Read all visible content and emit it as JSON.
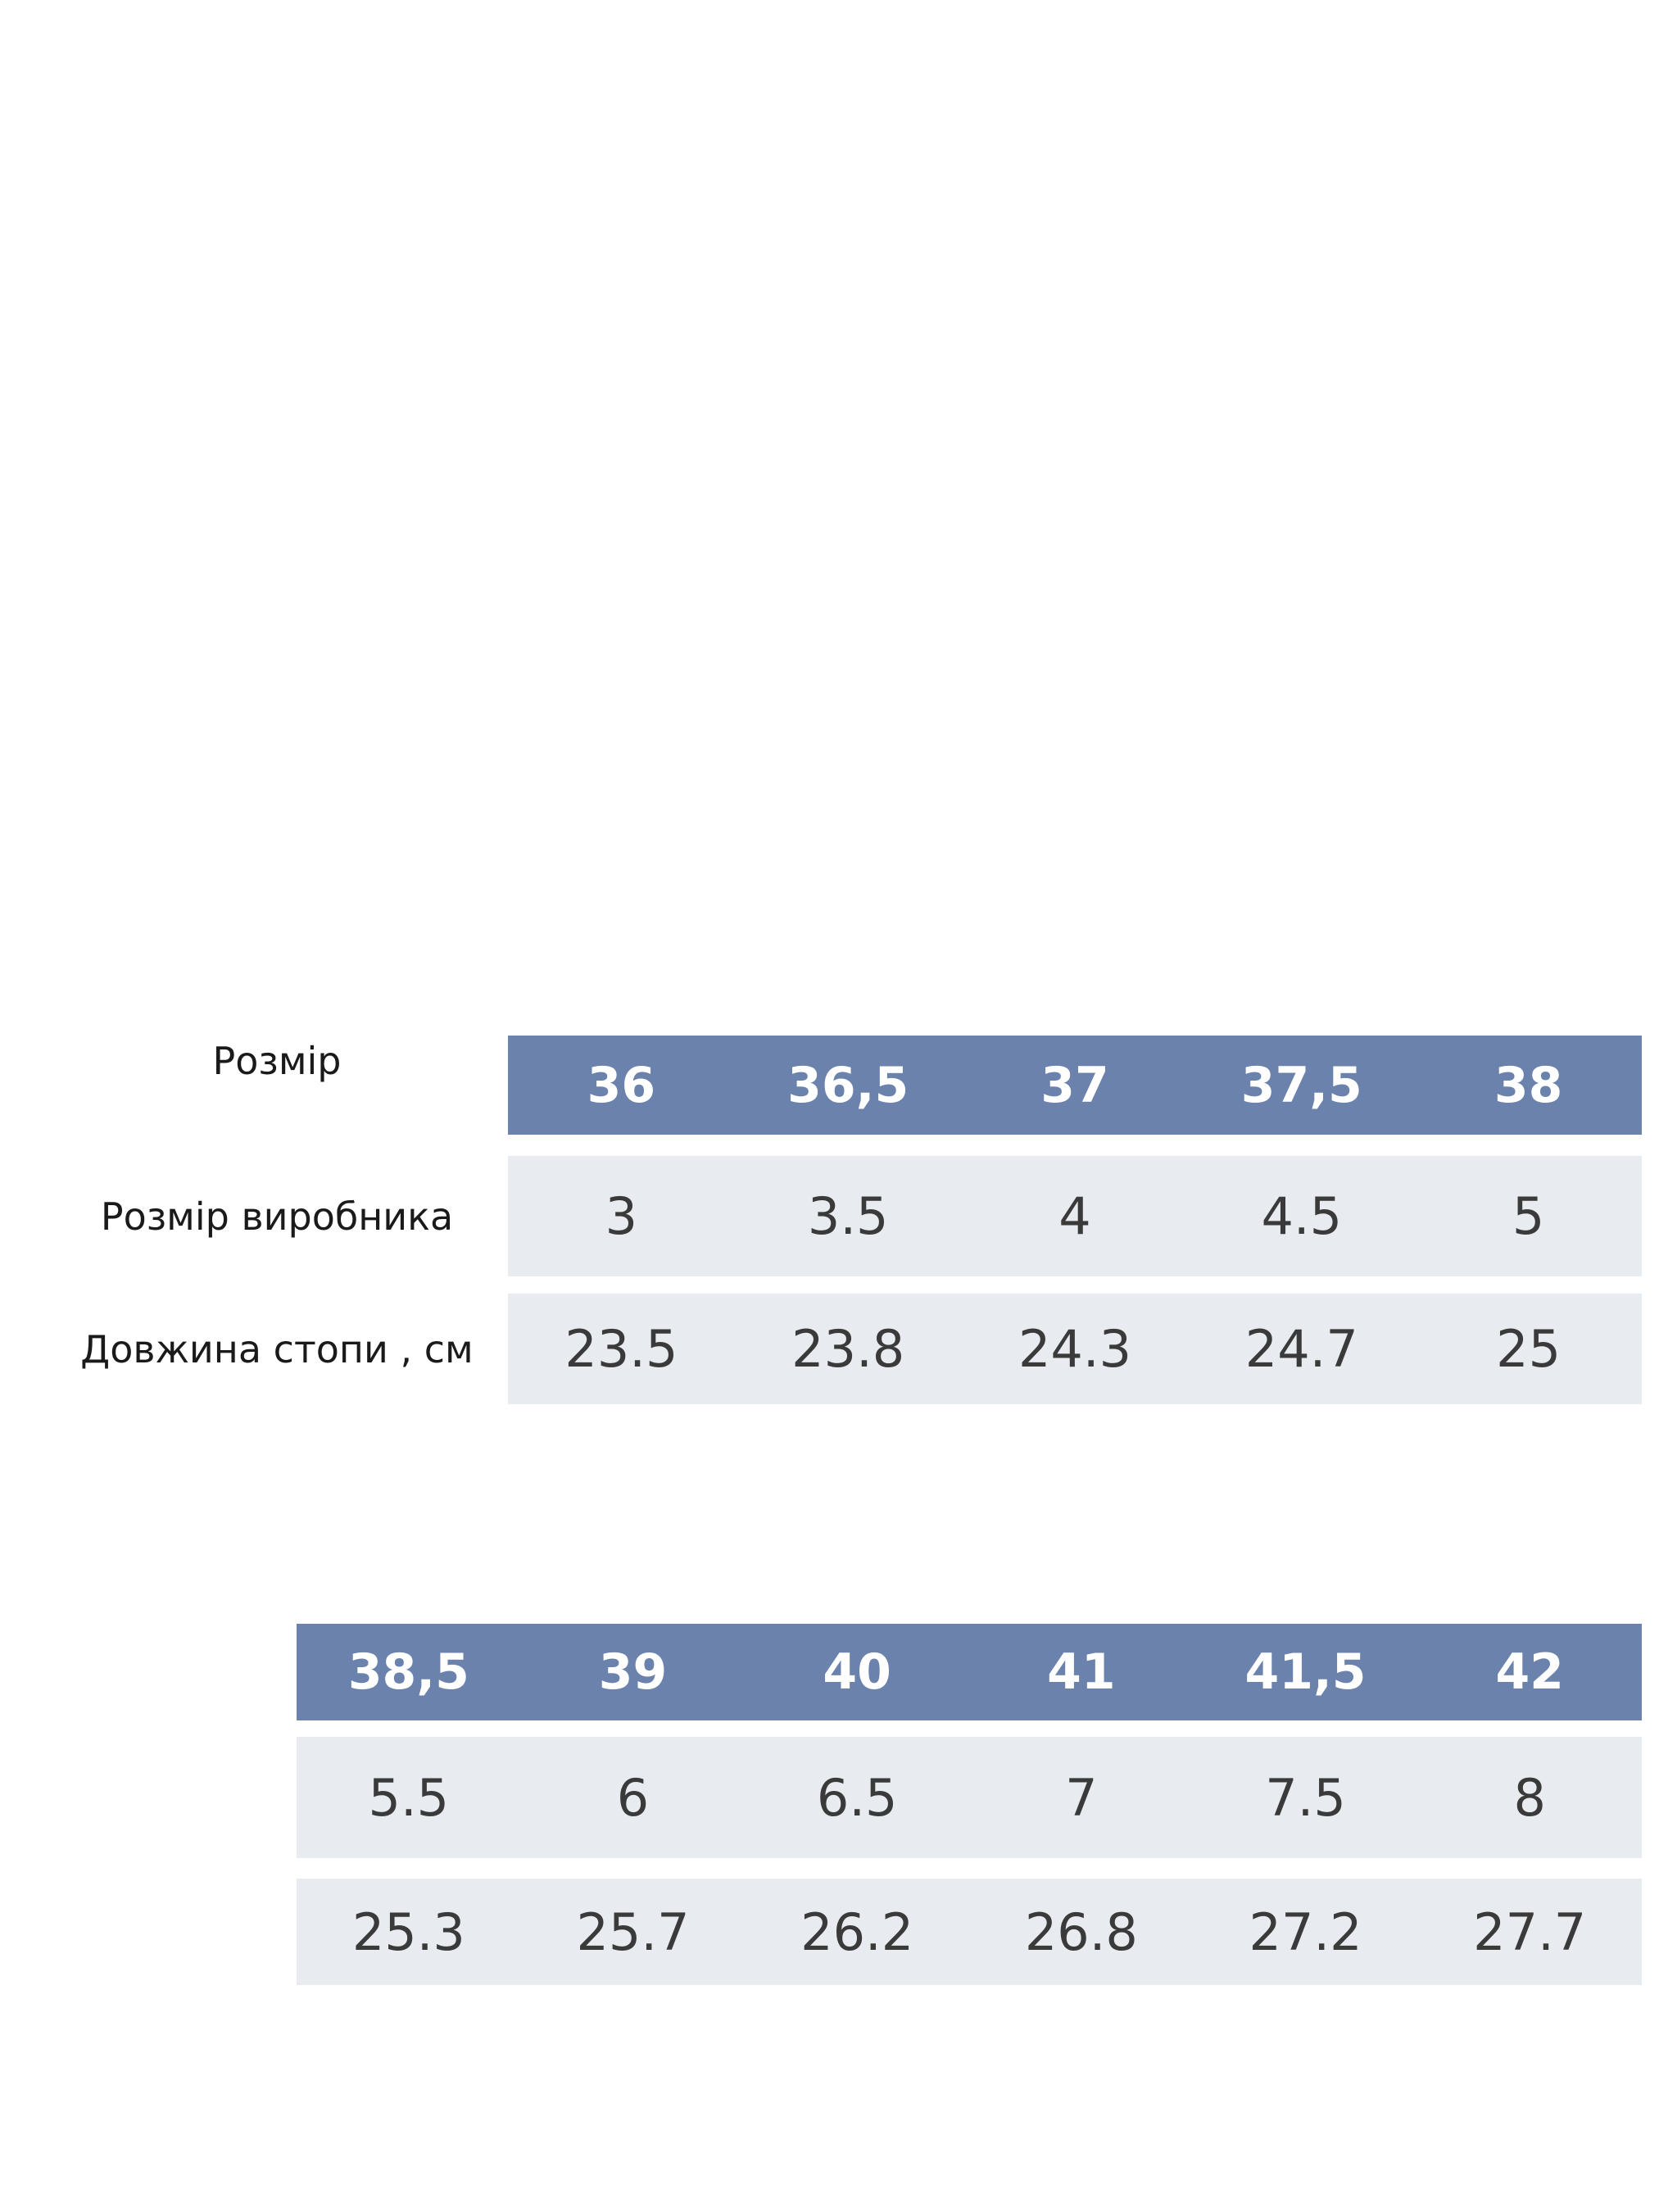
{
  "tables": [
    {
      "row_labels": [
        "Розмір",
        "Розмір виробника",
        "Довжина стопи , см"
      ],
      "rows": [
        [
          "36",
          "36,5",
          "37",
          "37,5",
          "38"
        ],
        [
          3,
          3.5,
          4,
          4.5,
          5
        ],
        [
          23.5,
          23.8,
          24.3,
          24.7,
          25
        ]
      ]
    },
    {
      "rows": [
        [
          "38,5",
          "39",
          "40",
          "41",
          "41,5",
          "42"
        ],
        [
          5.5,
          6,
          6.5,
          7,
          7.5,
          8
        ],
        [
          25.3,
          25.7,
          26.2,
          26.8,
          27.2,
          27.7
        ]
      ]
    }
  ]
}
